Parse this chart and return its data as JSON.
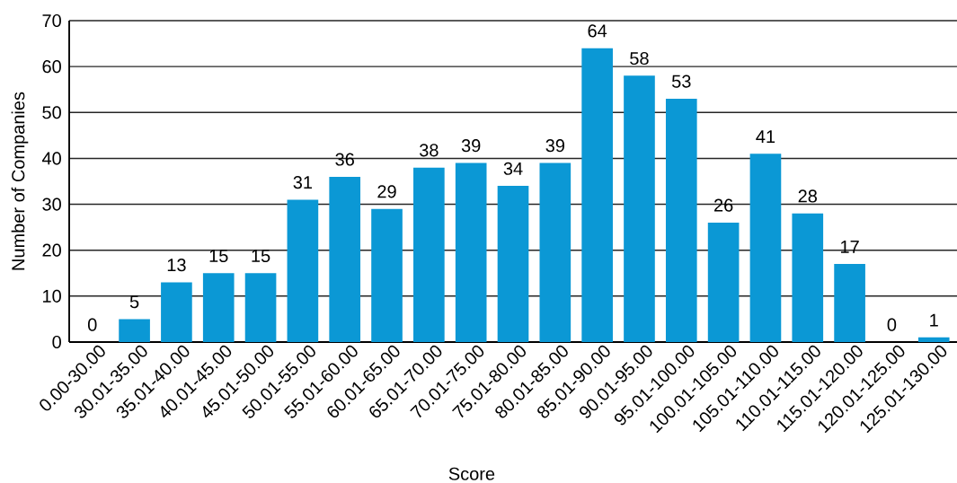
{
  "chart_data": {
    "type": "bar",
    "xlabel": "Score",
    "ylabel": "Number of Companies",
    "categories": [
      "0.00-30.00",
      "30.01-35.00",
      "35.01-40.00",
      "40.01-45.00",
      "45.01-50.00",
      "50.01-55.00",
      "55.01-60.00",
      "60.01-65.00",
      "65.01-70.00",
      "70.01-75.00",
      "75.01-80.00",
      "80.01-85.00",
      "85.01-90.00",
      "90.01-95.00",
      "95.01-100.00",
      "100.01-105.00",
      "105.01-110.00",
      "110.01-115.00",
      "115.01-120.00",
      "120.01-125.00",
      "125.01-130.00"
    ],
    "values": [
      0,
      5,
      13,
      15,
      15,
      31,
      36,
      29,
      38,
      39,
      34,
      39,
      64,
      58,
      53,
      26,
      41,
      28,
      17,
      0,
      1
    ],
    "color": "#0b98d5",
    "ylim": [
      0,
      70
    ],
    "yticks": [
      0,
      10,
      20,
      30,
      40,
      50,
      60,
      70
    ],
    "grid": "y",
    "data_labels": true
  }
}
